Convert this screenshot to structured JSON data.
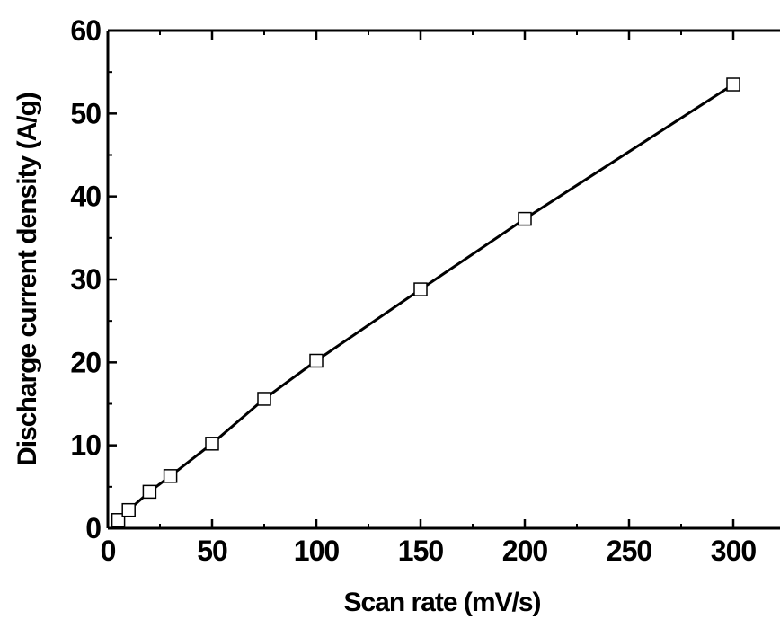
{
  "chart_data": {
    "type": "line",
    "title": "",
    "xlabel": "Scan rate (mV/s)",
    "ylabel": "Discharge current density (A/g)",
    "xlim": [
      0,
      320
    ],
    "ylim": [
      0,
      60
    ],
    "x_ticks": [
      "0",
      "50",
      "100",
      "150",
      "200",
      "250",
      "300"
    ],
    "y_ticks": [
      "0",
      "10",
      "20",
      "30",
      "40",
      "50",
      "60"
    ],
    "grid": false,
    "marker": "open-square",
    "series": [
      {
        "x": [
          5,
          10,
          20,
          30,
          50,
          75,
          100,
          150,
          200,
          300
        ],
        "y": [
          1.0,
          2.2,
          4.4,
          6.3,
          10.2,
          15.6,
          20.2,
          28.8,
          37.3,
          53.5
        ]
      }
    ]
  }
}
